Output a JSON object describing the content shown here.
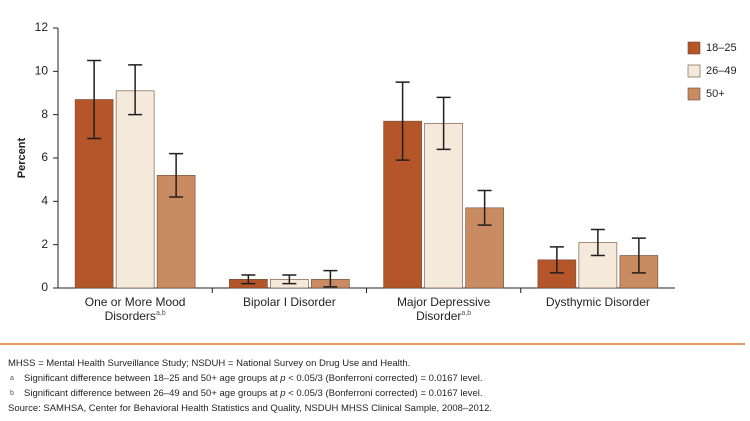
{
  "chart_data": {
    "type": "bar",
    "y_label": "Percent",
    "categories": [
      "One or More Mood Disorders",
      "Bipolar I Disorder",
      "Major Depressive Disorder",
      "Dysthymic Disorder"
    ],
    "category_superscripts": [
      "a,b",
      null,
      "a,b",
      null
    ],
    "series": [
      {
        "name": "18–25",
        "color": "#b5562a",
        "values": [
          8.7,
          0.4,
          7.7,
          1.3
        ],
        "error_low": [
          6.9,
          0.2,
          5.9,
          0.7
        ],
        "error_high": [
          10.5,
          0.6,
          9.5,
          1.9
        ]
      },
      {
        "name": "26–49",
        "color": "#f4e9da",
        "values": [
          9.1,
          0.4,
          7.6,
          2.1
        ],
        "error_low": [
          8.0,
          0.2,
          6.4,
          1.5
        ],
        "error_high": [
          10.3,
          0.6,
          8.8,
          2.7
        ]
      },
      {
        "name": "50+",
        "color": "#c98b62",
        "values": [
          5.2,
          0.4,
          3.7,
          1.5
        ],
        "error_low": [
          4.2,
          0.05,
          2.9,
          0.7
        ],
        "error_high": [
          6.2,
          0.8,
          4.5,
          2.3
        ]
      }
    ],
    "ylim": [
      0,
      12
    ],
    "yticks": [
      0,
      2,
      4,
      6,
      8,
      10,
      12
    ],
    "grid": false,
    "legend": "right"
  },
  "notes": {
    "abbreviations": "MHSS = Mental Health Surveillance Study; NSDUH = National Survey on Drug Use and Health.",
    "footnotes": [
      {
        "marker": "a",
        "before": "Significant difference between 18–25 and 50+ age groups at ",
        "italic": "p",
        "after": " < 0.05/3 (Bonferroni corrected) = 0.0167 level."
      },
      {
        "marker": "b",
        "before": "Significant difference between 26–49 and 50+ age groups at ",
        "italic": "p",
        "after": " < 0.05/3 (Bonferroni corrected) = 0.0167 level."
      }
    ],
    "source": "Source: SAMHSA, Center for Behavioral Health Statistics and Quality, NSDUH MHSS Clinical Sample, 2008–2012."
  }
}
